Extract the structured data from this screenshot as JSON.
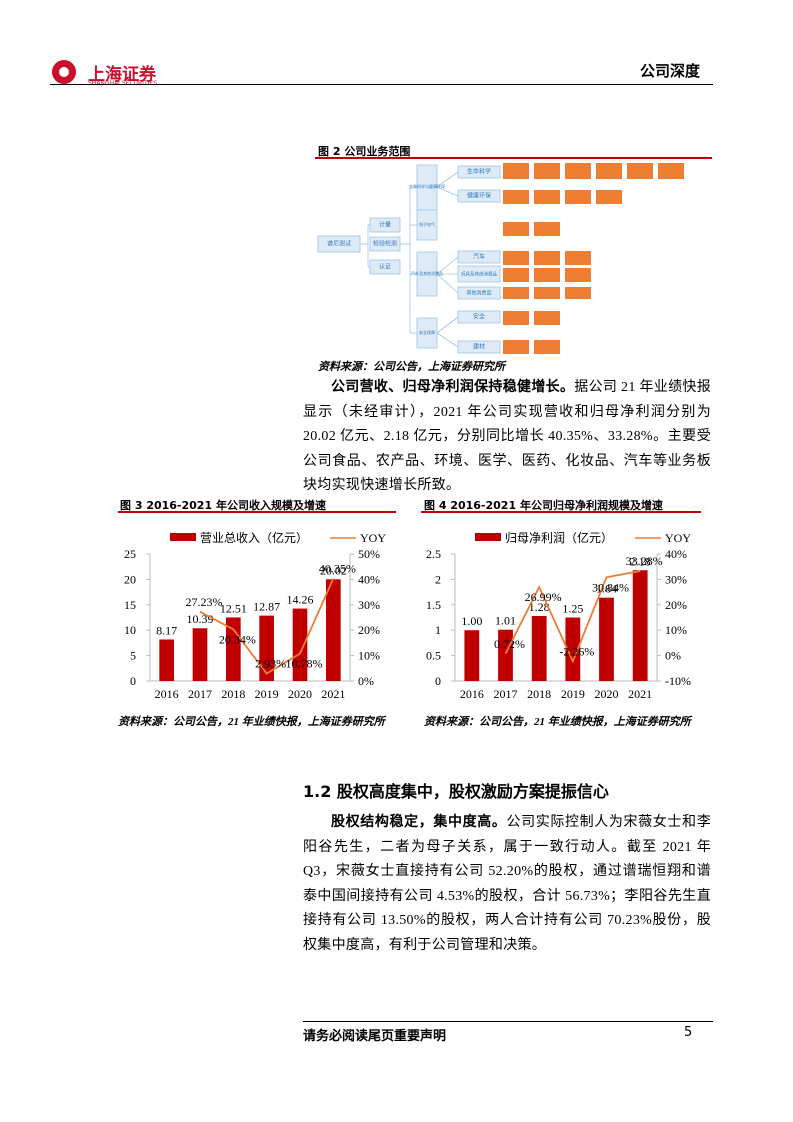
{
  "header": {
    "logo_cn": "上海证券",
    "logo_en": "SHANGHAI SECURITIES",
    "report_type": "公司深度"
  },
  "figure2": {
    "title": "图 2 公司业务范围",
    "nodes": [
      "谱尼测试",
      "计量",
      "检验检测",
      "认证",
      "生命科学与健康环保",
      "电子电气",
      "汽车及其他消费品",
      "安全保障",
      "生命科学",
      "健康环保",
      "汽车",
      "玩具及其他消费品",
      "其他消费品",
      "安全",
      "建材"
    ],
    "source": "资料来源：公司公告，上海证券研究所"
  },
  "paragraph1": {
    "lead": "公司营收、归母净利润保持稳健增长。",
    "body": "据公司 21 年业绩快报显示（未经审计），2021 年公司实现营收和归母净利润分别为 20.02 亿元、2.18 亿元，分别同比增长 40.35%、33.28%。主要受公司食品、农产品、环境、医学、医药、化妆品、汽车等业务板块均实现快速增长所致。"
  },
  "figure3": {
    "title": "图 3 2016-2021 年公司收入规模及增速",
    "chart": {
      "type": "bar",
      "categories": [
        "2016",
        "2017",
        "2018",
        "2019",
        "2020",
        "2021"
      ],
      "series": [
        {
          "name": "营业总收入（亿元）",
          "color": "#c00000",
          "values": [
            8.17,
            10.39,
            12.51,
            12.87,
            14.26,
            20.02
          ]
        },
        {
          "name": "YOY",
          "color": "#ed7d31",
          "type": "line",
          "axis": "y2",
          "values": [
            null,
            27.23,
            20.34,
            2.93,
            10.78,
            40.35
          ],
          "value_labels": [
            null,
            "27.23%",
            "20.34%",
            "2.93%",
            "10.78%",
            "40.35%"
          ]
        }
      ],
      "ylim": [
        0,
        25
      ],
      "yticks": [
        0,
        5,
        10,
        15,
        20,
        25
      ],
      "y2lim": [
        0,
        50
      ],
      "y2ticks": [
        {
          "value": 0,
          "label": "0%"
        },
        {
          "value": 10,
          "label": "10%"
        },
        {
          "value": 20,
          "label": "20%"
        },
        {
          "value": 30,
          "label": "30%"
        },
        {
          "value": 40,
          "label": "40%"
        },
        {
          "value": 50,
          "label": "50%"
        }
      ]
    },
    "source": "资料来源：公司公告，21 年业绩快报，上海证券研究所"
  },
  "figure4": {
    "title": "图 4 2016-2021 年公司归母净利润规模及增速",
    "chart": {
      "type": "bar",
      "categories": [
        "2016",
        "2017",
        "2018",
        "2019",
        "2020",
        "2021"
      ],
      "series": [
        {
          "name": "归母净利润（亿元）",
          "color": "#c00000",
          "values": [
            1.0,
            1.01,
            1.28,
            1.25,
            1.64,
            2.18
          ],
          "value_labels": [
            "1.00",
            "1.01",
            "1.28",
            "1.25",
            "1.64",
            "2.18"
          ]
        },
        {
          "name": "YOY",
          "color": "#ed7d31",
          "type": "line",
          "axis": "y2",
          "values": [
            null,
            0.72,
            26.99,
            -2.26,
            30.84,
            33.28
          ],
          "value_labels": [
            null,
            "0.72%",
            "26.99%",
            "-2.26%",
            "30.84%",
            "33.28%"
          ]
        }
      ],
      "ylim": [
        0,
        2.5
      ],
      "yticks": [
        0,
        0.5,
        1,
        1.5,
        2,
        2.5
      ],
      "y2lim": [
        -10,
        40
      ],
      "y2ticks": [
        {
          "value": -10,
          "label": "-10%"
        },
        {
          "value": 0,
          "label": "0%"
        },
        {
          "value": 10,
          "label": "10%"
        },
        {
          "value": 20,
          "label": "20%"
        },
        {
          "value": 30,
          "label": "30%"
        },
        {
          "value": 40,
          "label": "40%"
        }
      ]
    },
    "source": "资料来源：公司公告，21 年业绩快报，上海证券研究所"
  },
  "section": {
    "heading": "1.2 股权高度集中，股权激励方案提振信心"
  },
  "paragraph2": {
    "lead": "股权结构稳定，集中度高。",
    "body": "公司实际控制人为宋薇女士和李阳谷先生，二者为母子关系，属于一致行动人。截至 2021 年 Q3，宋薇女士直接持有公司 52.20%的股权，通过谱瑞恒翔和谱泰中国间接持有公司 4.53%的股权，合计 56.73%；李阳谷先生直接持有公司 13.50%的股权，两人合计持有公司 70.23%股份，股权集中度高，有利于公司管理和决策。"
  },
  "footer": {
    "notice": "请务必阅读尾页重要声明",
    "page": "5"
  }
}
